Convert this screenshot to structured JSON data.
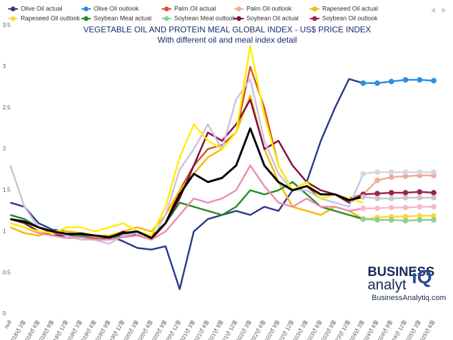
{
  "chart_data": {
    "type": "line",
    "title": "VEGETABLE OIL AND PROTEIN MEAL GLOBAL INDEX - US$ PRICE INDEX",
    "subtitle": "With different oil and meal index detail",
    "categories": [
      "null",
      "2018년 3월",
      "2018년 6월",
      "2018년 9월",
      "2018년 12월",
      "2019년 3월",
      "2019년 6월",
      "2019년 9월",
      "2019년 12월",
      "2020년 3월",
      "2020년 6월",
      "2020년 9월",
      "2020년 12월",
      "2021년 3월",
      "2021년 6월",
      "2021년 9월",
      "2021년 12월",
      "2022년 3월",
      "2022년 6월",
      "2022년 9월",
      "2022년 12월",
      "2023년 3월",
      "2023년 6월",
      "2023년 9월",
      "2023년 12월",
      "2024년 3월",
      "2024년 6월",
      "2024년 9월",
      "2024년 12월",
      "2025년 3월",
      "2025년 6월"
    ],
    "ylim": [
      0,
      3.5
    ],
    "yticks": [
      0,
      0.5,
      1,
      1.5,
      2,
      2.5,
      3,
      3.5
    ],
    "grid": false,
    "legend": "top",
    "series": [
      {
        "name": "Olive Oil actual",
        "color": "#2b3a8c",
        "values": [
          1.35,
          1.3,
          1.1,
          1.02,
          1.0,
          0.98,
          0.95,
          0.95,
          0.88,
          0.8,
          0.78,
          0.82,
          0.3,
          1.0,
          1.15,
          1.2,
          1.25,
          1.2,
          1.3,
          1.25,
          1.5,
          1.6,
          2.1,
          2.5,
          2.85,
          2.8,
          null,
          null,
          null,
          null,
          null
        ]
      },
      {
        "name": "Olive Oil outlook",
        "color": "#2e8fe0",
        "marker": "circle",
        "values": [
          null,
          null,
          null,
          null,
          null,
          null,
          null,
          null,
          null,
          null,
          null,
          null,
          null,
          null,
          null,
          null,
          null,
          null,
          null,
          null,
          null,
          null,
          null,
          null,
          null,
          2.8,
          2.8,
          2.82,
          2.84,
          2.84,
          2.83
        ]
      },
      {
        "name": "Palm Oil actual",
        "color": "#d9542b",
        "values": [
          1.2,
          1.15,
          1.05,
          0.98,
          0.95,
          0.95,
          0.92,
          0.9,
          0.95,
          1.0,
          0.9,
          1.1,
          1.5,
          1.8,
          2.0,
          2.05,
          2.2,
          3.0,
          2.5,
          1.8,
          1.5,
          1.55,
          1.4,
          1.45,
          1.4,
          1.45,
          null,
          null,
          null,
          null,
          null
        ]
      },
      {
        "name": "Palm Oil outlook",
        "color": "#f2aa98",
        "marker": "circle",
        "values": [
          null,
          null,
          null,
          null,
          null,
          null,
          null,
          null,
          null,
          null,
          null,
          null,
          null,
          null,
          null,
          null,
          null,
          null,
          null,
          null,
          null,
          null,
          null,
          null,
          null,
          1.45,
          1.62,
          1.66,
          1.67,
          1.68,
          1.68
        ]
      },
      {
        "name": "Rapeseed Oil actual",
        "color": "#f5b800",
        "values": [
          1.05,
          0.98,
          0.95,
          1.0,
          1.0,
          0.98,
          0.95,
          0.95,
          1.0,
          1.05,
          1.0,
          1.2,
          1.5,
          1.7,
          1.9,
          2.0,
          2.2,
          2.65,
          2.0,
          1.6,
          1.3,
          1.25,
          1.2,
          1.3,
          1.25,
          1.15,
          null,
          null,
          null,
          null,
          null
        ]
      },
      {
        "name": "Rapeseed Oil outlook",
        "color": "#ffd740",
        "marker": "circle",
        "values": [
          null,
          null,
          null,
          null,
          null,
          null,
          null,
          null,
          null,
          null,
          null,
          null,
          null,
          null,
          null,
          null,
          null,
          null,
          null,
          null,
          null,
          null,
          null,
          null,
          null,
          1.15,
          1.17,
          1.18,
          1.18,
          1.19,
          1.19
        ]
      },
      {
        "name": "Soybean Meal actual",
        "color": "#2a8a2a",
        "values": [
          1.2,
          1.15,
          1.05,
          1.0,
          0.95,
          0.95,
          0.9,
          0.92,
          0.95,
          0.95,
          0.92,
          1.1,
          1.35,
          1.3,
          1.25,
          1.2,
          1.3,
          1.5,
          1.45,
          1.5,
          1.6,
          1.45,
          1.3,
          1.25,
          1.2,
          1.15,
          null,
          null,
          null,
          null,
          null
        ]
      },
      {
        "name": "Soybean Meal outlook",
        "color": "#8fcf8f",
        "marker": "circle",
        "values": [
          null,
          null,
          null,
          null,
          null,
          null,
          null,
          null,
          null,
          null,
          null,
          null,
          null,
          null,
          null,
          null,
          null,
          null,
          null,
          null,
          null,
          null,
          null,
          null,
          null,
          1.15,
          1.14,
          1.14,
          1.13,
          1.14,
          1.14
        ]
      },
      {
        "name": "Soybean Oil actual",
        "color": "#7b1040",
        "values": [
          1.15,
          1.1,
          1.0,
          0.95,
          0.95,
          0.98,
          0.95,
          0.92,
          1.0,
          0.95,
          0.95,
          1.1,
          1.4,
          1.8,
          2.2,
          2.1,
          2.3,
          2.6,
          2.0,
          2.1,
          1.8,
          1.6,
          1.5,
          1.45,
          1.35,
          1.45,
          null,
          null,
          null,
          null,
          null
        ]
      },
      {
        "name": "Soybean Oil outlook",
        "color": "#a02050",
        "marker": "circle",
        "values": [
          null,
          null,
          null,
          null,
          null,
          null,
          null,
          null,
          null,
          null,
          null,
          null,
          null,
          null,
          null,
          null,
          null,
          null,
          null,
          null,
          null,
          null,
          null,
          null,
          null,
          1.45,
          1.46,
          1.47,
          1.47,
          1.48,
          1.47
        ]
      },
      {
        "color": "#c8c4e0",
        "values": [
          1.8,
          1.3,
          1.05,
          1.0,
          0.95,
          0.9,
          0.9,
          0.85,
          0.95,
          0.98,
          0.9,
          1.2,
          1.75,
          2.0,
          2.3,
          2.0,
          2.6,
          2.85,
          2.1,
          1.7,
          1.5,
          1.5,
          1.4,
          1.35,
          1.3,
          1.7,
          null,
          null,
          null,
          null,
          null
        ]
      },
      {
        "color": "#d8d4e4",
        "marker": "circle",
        "values": [
          null,
          null,
          null,
          null,
          null,
          null,
          null,
          null,
          null,
          null,
          null,
          null,
          null,
          null,
          null,
          null,
          null,
          null,
          null,
          null,
          null,
          null,
          null,
          null,
          null,
          1.7,
          1.72,
          1.72,
          1.72,
          1.72,
          1.72
        ]
      },
      {
        "color": "#f08cb0",
        "values": [
          1.1,
          1.05,
          0.98,
          0.95,
          0.92,
          0.93,
          0.9,
          0.9,
          0.93,
          0.95,
          0.9,
          1.0,
          1.2,
          1.4,
          1.35,
          1.4,
          1.5,
          1.8,
          1.55,
          1.35,
          1.3,
          1.4,
          1.3,
          1.3,
          1.25,
          1.28,
          null,
          null,
          null,
          null,
          null
        ]
      },
      {
        "color": "#f5b8d0",
        "marker": "circle",
        "values": [
          null,
          null,
          null,
          null,
          null,
          null,
          null,
          null,
          null,
          null,
          null,
          null,
          null,
          null,
          null,
          null,
          null,
          null,
          null,
          null,
          null,
          null,
          null,
          null,
          null,
          1.28,
          1.28,
          1.29,
          1.29,
          1.3,
          1.3
        ]
      },
      {
        "color": "#ffee00",
        "values": [
          1.1,
          1.05,
          1.0,
          0.98,
          1.05,
          1.05,
          1.0,
          1.05,
          1.1,
          1.0,
          0.95,
          1.3,
          1.9,
          2.3,
          2.1,
          2.0,
          2.2,
          3.25,
          2.4,
          1.8,
          1.5,
          1.6,
          1.4,
          1.45,
          1.4,
          1.35,
          null,
          null,
          null,
          null,
          null
        ]
      },
      {
        "color": "#000000",
        "width": 3,
        "values": [
          1.15,
          1.12,
          1.05,
          1.0,
          0.97,
          0.97,
          0.95,
          0.93,
          0.98,
          1.0,
          0.92,
          1.1,
          1.45,
          1.7,
          1.6,
          1.65,
          1.8,
          2.25,
          1.8,
          1.6,
          1.5,
          1.55,
          1.45,
          1.45,
          1.38,
          1.42,
          null,
          null,
          null,
          null,
          null
        ]
      },
      {
        "color": "#c8c8c8",
        "marker": "circle",
        "values": [
          null,
          null,
          null,
          null,
          null,
          null,
          null,
          null,
          null,
          null,
          null,
          null,
          null,
          null,
          null,
          null,
          null,
          null,
          null,
          null,
          null,
          null,
          null,
          null,
          null,
          1.42,
          1.4,
          1.4,
          1.41,
          1.41,
          1.41
        ]
      }
    ],
    "watermark": {
      "line1": "BUSINESS",
      "line2": "analyt",
      "mark": "iQ",
      "url": "BusinessAnalytiq.com"
    }
  }
}
